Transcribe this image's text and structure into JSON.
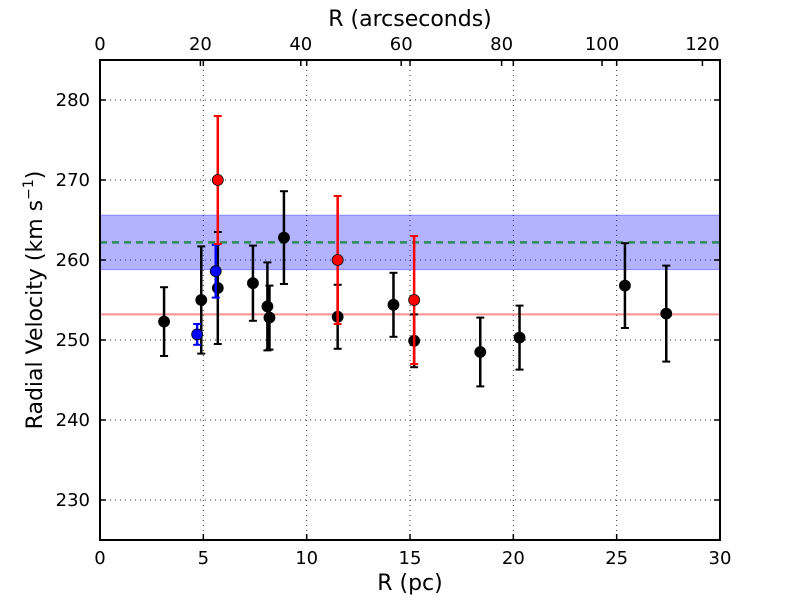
{
  "chart_data": {
    "type": "scatter",
    "xlabel": "R (pc)",
    "ylabel": "Radial Velocity (km s",
    "ylabel_sup": "−1",
    "ylabel_end": ")",
    "x2label": "R (arcseconds)",
    "xlim": [
      0,
      30
    ],
    "ylim": [
      225,
      285
    ],
    "x2lim": [
      0,
      123.5
    ],
    "xticks": [
      0,
      5,
      10,
      15,
      20,
      25,
      30
    ],
    "yticks": [
      230,
      240,
      250,
      260,
      270,
      280
    ],
    "x2ticks": [
      0,
      20,
      40,
      60,
      80,
      100,
      120
    ],
    "grid": true,
    "band": {
      "y_low": 258.8,
      "y_high": 265.6,
      "color": "#0000ff"
    },
    "hlines": [
      {
        "y": 262.2,
        "color": "#2e8b57",
        "style": "dashed"
      },
      {
        "y": 253.2,
        "color": "#ff4444",
        "style": "solid"
      }
    ],
    "series": [
      {
        "color": "#000000",
        "points": [
          {
            "x": 3.1,
            "y": 252.3,
            "err": 4.3
          },
          {
            "x": 4.9,
            "y": 255.0,
            "err": 6.7
          },
          {
            "x": 5.7,
            "y": 256.5,
            "err": 7.0
          },
          {
            "x": 7.4,
            "y": 257.1,
            "err": 4.7
          },
          {
            "x": 8.1,
            "y": 254.2,
            "err": 5.5
          },
          {
            "x": 8.2,
            "y": 252.8,
            "err": 4.0
          },
          {
            "x": 8.9,
            "y": 262.8,
            "err": 5.8
          },
          {
            "x": 11.5,
            "y": 252.9,
            "err": 4.0
          },
          {
            "x": 14.2,
            "y": 254.4,
            "err": 4.0
          },
          {
            "x": 15.2,
            "y": 249.9,
            "err": 3.3
          },
          {
            "x": 18.4,
            "y": 248.5,
            "err": 4.3
          },
          {
            "x": 20.3,
            "y": 250.3,
            "err": 4.0
          },
          {
            "x": 25.4,
            "y": 256.8,
            "err": 5.3
          },
          {
            "x": 27.4,
            "y": 253.3,
            "err": 6.0
          }
        ]
      },
      {
        "color": "#0000ff",
        "points": [
          {
            "x": 4.7,
            "y": 250.7,
            "err": 1.3
          },
          {
            "x": 5.6,
            "y": 258.6,
            "err": 3.3
          }
        ]
      },
      {
        "color": "#ff0000",
        "points": [
          {
            "x": 5.7,
            "y": 270.0,
            "err": 8.0
          },
          {
            "x": 11.5,
            "y": 260.0,
            "err": 8.0
          },
          {
            "x": 15.2,
            "y": 255.0,
            "err": 8.0
          }
        ]
      }
    ]
  }
}
